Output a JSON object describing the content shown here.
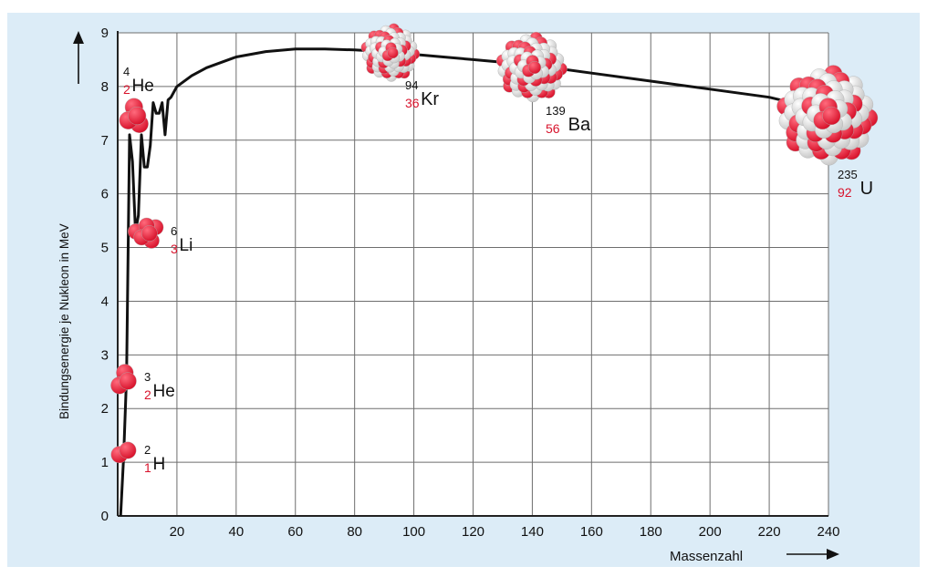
{
  "colors": {
    "background": "#dcecf7",
    "plot_area": "#ffffff",
    "grid": "#6e6e6e",
    "curve": "#111111",
    "proton": "#d8132c",
    "neutron": "#f2f2f2",
    "atomic_number": "#d8132c"
  },
  "chart_data": {
    "type": "line",
    "title": "",
    "xlabel": "Massenzahl",
    "ylabel": "Bindungsenergie je Nukleon in MeV",
    "xlim": [
      0,
      240
    ],
    "ylim": [
      0,
      9
    ],
    "x_ticks": [
      "20",
      "40",
      "60",
      "80",
      "100",
      "120",
      "140",
      "160",
      "180",
      "200",
      "220",
      "240"
    ],
    "y_ticks": [
      "0",
      "1",
      "2",
      "3",
      "4",
      "5",
      "6",
      "7",
      "8",
      "9"
    ],
    "grid": true,
    "series": [
      {
        "x": [
          1,
          2,
          3,
          4,
          5,
          6,
          7,
          8,
          9,
          10,
          11,
          12,
          13,
          14,
          15,
          16,
          17,
          18,
          20,
          25,
          30,
          40,
          50,
          60,
          70,
          80,
          90,
          100,
          110,
          120,
          140,
          160,
          180,
          200,
          220,
          235
        ],
        "y": [
          0,
          1.1,
          2.6,
          7.1,
          6.6,
          5.3,
          5.6,
          7.1,
          6.5,
          6.5,
          6.9,
          7.7,
          7.5,
          7.5,
          7.7,
          7.1,
          7.75,
          7.8,
          8.0,
          8.2,
          8.35,
          8.55,
          8.65,
          8.7,
          8.7,
          8.68,
          8.65,
          8.6,
          8.55,
          8.5,
          8.4,
          8.25,
          8.1,
          7.95,
          7.8,
          7.6
        ]
      }
    ],
    "nuclides": [
      {
        "symbol": "H",
        "mass": "2",
        "atomic": "1",
        "x": 2,
        "y": 1.1
      },
      {
        "symbol": "He",
        "mass": "3",
        "atomic": "2",
        "x": 3,
        "y": 2.6
      },
      {
        "symbol": "He",
        "mass": "4",
        "atomic": "2",
        "x": 4,
        "y": 7.1
      },
      {
        "symbol": "Li",
        "mass": "6",
        "atomic": "3",
        "x": 6,
        "y": 5.3
      },
      {
        "symbol": "Kr",
        "mass": "94",
        "atomic": "36",
        "x": 94,
        "y": 8.6
      },
      {
        "symbol": "Ba",
        "mass": "139",
        "atomic": "56",
        "x": 139,
        "y": 8.4
      },
      {
        "symbol": "U",
        "mass": "235",
        "atomic": "92",
        "x": 235,
        "y": 7.6
      }
    ]
  }
}
